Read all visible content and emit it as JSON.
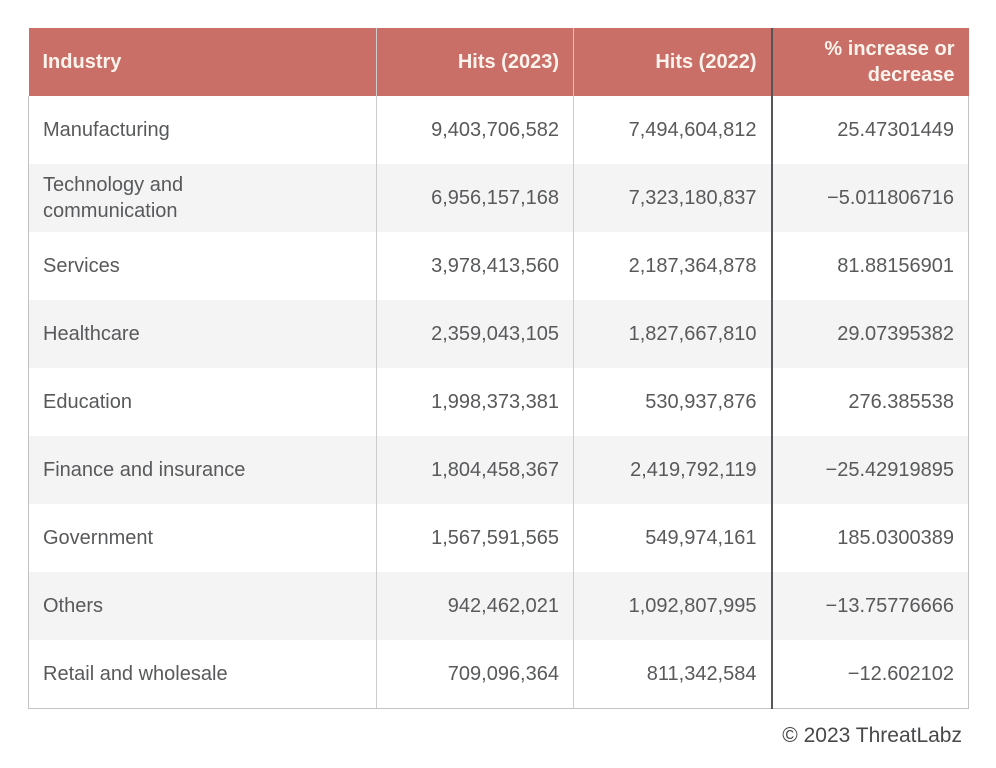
{
  "chart_data": {
    "type": "table",
    "columns": [
      "Industry",
      "Hits (2023)",
      "Hits (2022)",
      "% increase or decrease"
    ],
    "rows": [
      [
        "Manufacturing",
        "9,403,706,582",
        "7,494,604,812",
        "25.47301449"
      ],
      [
        "Technology and communication",
        "6,956,157,168",
        "7,323,180,837",
        "−5.011806716"
      ],
      [
        "Services",
        "3,978,413,560",
        "2,187,364,878",
        "81.88156901"
      ],
      [
        "Healthcare",
        "2,359,043,105",
        "1,827,667,810",
        "29.07395382"
      ],
      [
        "Education",
        "1,998,373,381",
        "530,937,876",
        "276.385538"
      ],
      [
        "Finance and insurance",
        "1,804,458,367",
        "2,419,792,119",
        "−25.42919895"
      ],
      [
        "Government",
        "1,567,591,565",
        "549,974,161",
        "185.0300389"
      ],
      [
        "Others",
        "942,462,021",
        "1,092,807,995",
        "−13.75776666"
      ],
      [
        "Retail and wholesale",
        "709,096,364",
        "811,342,584",
        "−12.602102"
      ]
    ],
    "footer": "© 2023 ThreatLabz"
  },
  "colors": {
    "header_bg": "#c96f67",
    "header_text": "#fbf3ec",
    "body_text": "#58595b",
    "row_stripe": "#f4f4f4",
    "divider_light": "#cccccc",
    "divider_dark": "#555657",
    "outer_border": "#c3c3c3",
    "footer_text": "#47484a"
  }
}
